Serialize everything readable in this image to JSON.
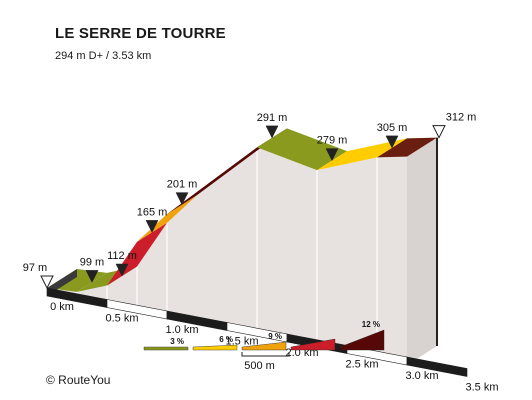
{
  "header": {
    "title": "LE SERRE DE TOURRE",
    "subtitle": "294 m D+ / 3.53 km"
  },
  "footer": {
    "credit": "© RouteYou"
  },
  "chart_data": {
    "type": "area",
    "title": "LE SERRE DE TOURRE",
    "subtitle": "294 m D+ / 3.53 km",
    "x_unit": "km",
    "y_unit": "m",
    "xlim": [
      0,
      3.5
    ],
    "points": [
      {
        "x": 0.0,
        "y": 97,
        "label": "97 m"
      },
      {
        "x": 0.25,
        "y": 99,
        "label": "99 m"
      },
      {
        "x": 0.5,
        "y": 112,
        "label": "112 m"
      },
      {
        "x": 0.75,
        "y": 165,
        "label": "165 m"
      },
      {
        "x": 1.0,
        "y": 201,
        "label": "201 m"
      },
      {
        "x": 1.75,
        "y": 291,
        "label": "291 m"
      },
      {
        "x": 2.25,
        "y": 279,
        "label": "279 m"
      },
      {
        "x": 2.75,
        "y": 305,
        "label": "305 m"
      },
      {
        "x": 3.0,
        "y": 312,
        "label": "312 m"
      }
    ],
    "segment_colors": [
      "#8a9a1e",
      "#8a9a1e",
      "#cc1e2a",
      "#f0a20c",
      "#560806",
      "#8a9a1e",
      "#ffcc00",
      "#6a1e10"
    ],
    "marker_types": [
      "start",
      "marker",
      "marker",
      "marker",
      "marker",
      "marker",
      "marker",
      "marker",
      "end"
    ],
    "x_ticks": [
      {
        "x": 0.0,
        "label": "0 km"
      },
      {
        "x": 0.5,
        "label": "0.5 km"
      },
      {
        "x": 1.0,
        "label": "1.0 km"
      },
      {
        "x": 1.5,
        "label": "1.5 km"
      },
      {
        "x": 2.0,
        "label": "2.0 km"
      },
      {
        "x": 2.5,
        "label": "2.5 km"
      },
      {
        "x": 3.0,
        "label": "3.0 km"
      },
      {
        "x": 3.5,
        "label": "3.5 km"
      }
    ],
    "legend": {
      "entries": [
        {
          "label": "3 %",
          "color": "#8a9a1e"
        },
        {
          "label": "6 %",
          "color": "#ffcc00"
        },
        {
          "label": "9 %",
          "color": "#f0a20c"
        },
        {
          "label": "",
          "color": "#cc1e2a"
        },
        {
          "label": "12 %",
          "color": "#560806"
        }
      ],
      "scale_label": "500 m"
    }
  }
}
